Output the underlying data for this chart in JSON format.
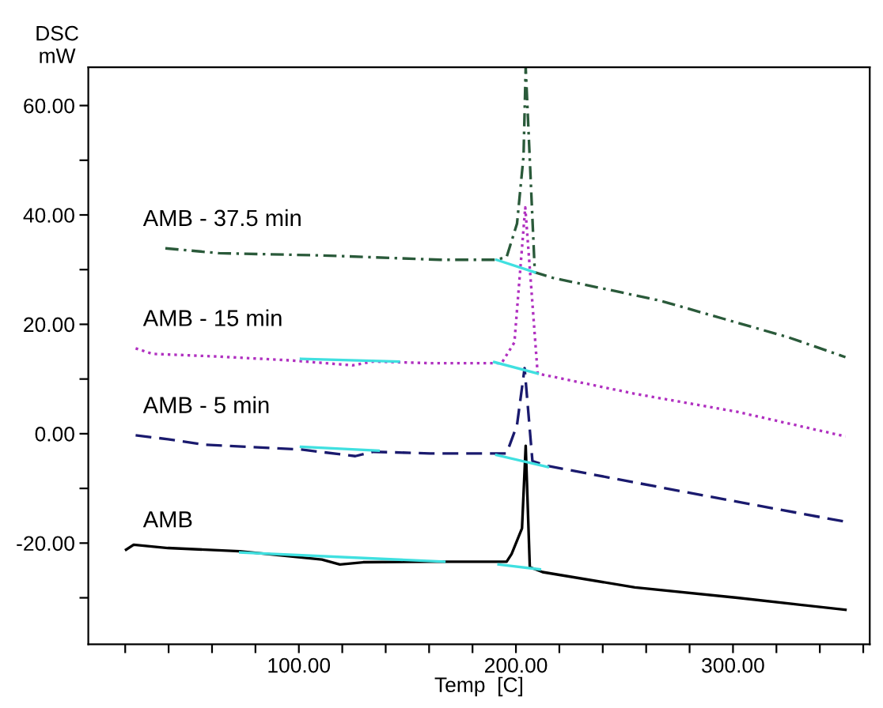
{
  "chart_data": {
    "type": "line",
    "ylabel": "DSC\nmW",
    "xlabel": "Temp  [C]",
    "xlim": [
      3,
      363
    ],
    "ylim": [
      -38.5,
      67
    ],
    "xticks": [
      {
        "value": 20,
        "label": null
      },
      {
        "value": 40,
        "label": null
      },
      {
        "value": 60,
        "label": null
      },
      {
        "value": 80,
        "label": null
      },
      {
        "value": 100,
        "label": "100.00"
      },
      {
        "value": 120,
        "label": null
      },
      {
        "value": 140,
        "label": null
      },
      {
        "value": 160,
        "label": null
      },
      {
        "value": 180,
        "label": null
      },
      {
        "value": 200,
        "label": "200.00"
      },
      {
        "value": 220,
        "label": null
      },
      {
        "value": 240,
        "label": null
      },
      {
        "value": 260,
        "label": null
      },
      {
        "value": 280,
        "label": null
      },
      {
        "value": 300,
        "label": "300.00"
      },
      {
        "value": 320,
        "label": null
      },
      {
        "value": 340,
        "label": null
      },
      {
        "value": 360,
        "label": null
      }
    ],
    "yticks": [
      {
        "value": -30,
        "label": null
      },
      {
        "value": -20,
        "label": "-20.00"
      },
      {
        "value": -10,
        "label": null
      },
      {
        "value": 0,
        "label": "0.00"
      },
      {
        "value": 10,
        "label": null
      },
      {
        "value": 20,
        "label": "20.00"
      },
      {
        "value": 30,
        "label": null
      },
      {
        "value": 40,
        "label": "40.00"
      },
      {
        "value": 50,
        "label": null
      },
      {
        "value": 60,
        "label": "60.00"
      }
    ],
    "grid": false,
    "legend": false,
    "marker": "none",
    "series": [
      {
        "name": "AMB - 37.5 min",
        "color": "#2a5a3a",
        "line_style": "dashdot",
        "x": [
          38.5,
          63.3,
          110.6,
          165,
          191,
          195.7,
          200.5,
          203.5,
          204.5,
          208.7,
          217,
          266.7,
          325.7,
          351.8
        ],
        "values": [
          33.9,
          33.0,
          32.6,
          31.8,
          31.8,
          32.3,
          38.4,
          50.7,
          67,
          29.5,
          28.5,
          24.3,
          17.6,
          14.0
        ]
      },
      {
        "name": "AMB - 15 min",
        "color": "#b030c0",
        "line_style": "dotted",
        "x": [
          24.8,
          32.6,
          63.3,
          96.5,
          124.8,
          134.3,
          160.3,
          193.4,
          199.3,
          204.3,
          210,
          254.8,
          302,
          351.8
        ],
        "values": [
          15.6,
          14.6,
          14.1,
          13.4,
          12.5,
          13.2,
          12.9,
          12.9,
          16.7,
          41.4,
          11.0,
          7.3,
          4.0,
          -0.5
        ]
      },
      {
        "name": "AMB - 5 min",
        "color": "#1a1a6e",
        "line_style": "dashed",
        "x": [
          24.8,
          39.7,
          56.3,
          101.2,
          126,
          134.3,
          160.3,
          195.7,
          200.5,
          204,
          207.6,
          214.7,
          278.5,
          351.8
        ],
        "values": [
          -0.3,
          -1.0,
          -2.0,
          -2.9,
          -4.1,
          -3.3,
          -3.6,
          -3.6,
          1.6,
          12,
          -5.0,
          -5.9,
          -10.7,
          -16.1
        ]
      },
      {
        "name": "AMB",
        "color": "#000000",
        "line_style": "solid",
        "x": [
          20.4,
          23.9,
          39.7,
          72.8,
          110.6,
          118.9,
          129.6,
          160,
          195.7,
          198,
          202.8,
          204.5,
          206.4,
          212.3,
          254.8,
          302,
          351.8
        ],
        "values": [
          -21.2,
          -20.3,
          -20.9,
          -21.5,
          -23.0,
          -23.9,
          -23.5,
          -23.4,
          -23.4,
          -22.0,
          -17.3,
          -2.2,
          -24.4,
          -25.3,
          -28.1,
          -30.0,
          -32.2
        ]
      },
      {
        "color": "#40e0e0",
        "line_style": "solid",
        "x": [
          191,
          208.7
        ],
        "values": [
          31.8,
          29.5
        ]
      },
      {
        "color": "#40e0e0",
        "line_style": "solid",
        "x": [
          101,
          146
        ],
        "values": [
          13.7,
          13.2
        ]
      },
      {
        "color": "#40e0e0",
        "line_style": "solid",
        "x": [
          190,
          210
        ],
        "values": [
          13.1,
          11.0
        ]
      },
      {
        "color": "#40e0e0",
        "line_style": "solid",
        "x": [
          101,
          136.7
        ],
        "values": [
          -2.4,
          -3.1
        ]
      },
      {
        "color": "#40e0e0",
        "line_style": "solid",
        "x": [
          191,
          214.7
        ],
        "values": [
          -3.9,
          -6.1
        ]
      },
      {
        "color": "#40e0e0",
        "line_style": "solid",
        "x": [
          73,
          167
        ],
        "values": [
          -21.7,
          -23.4
        ]
      },
      {
        "color": "#40e0e0",
        "line_style": "solid",
        "x": [
          192,
          211
        ],
        "values": [
          -23.9,
          -24.8
        ]
      }
    ]
  }
}
